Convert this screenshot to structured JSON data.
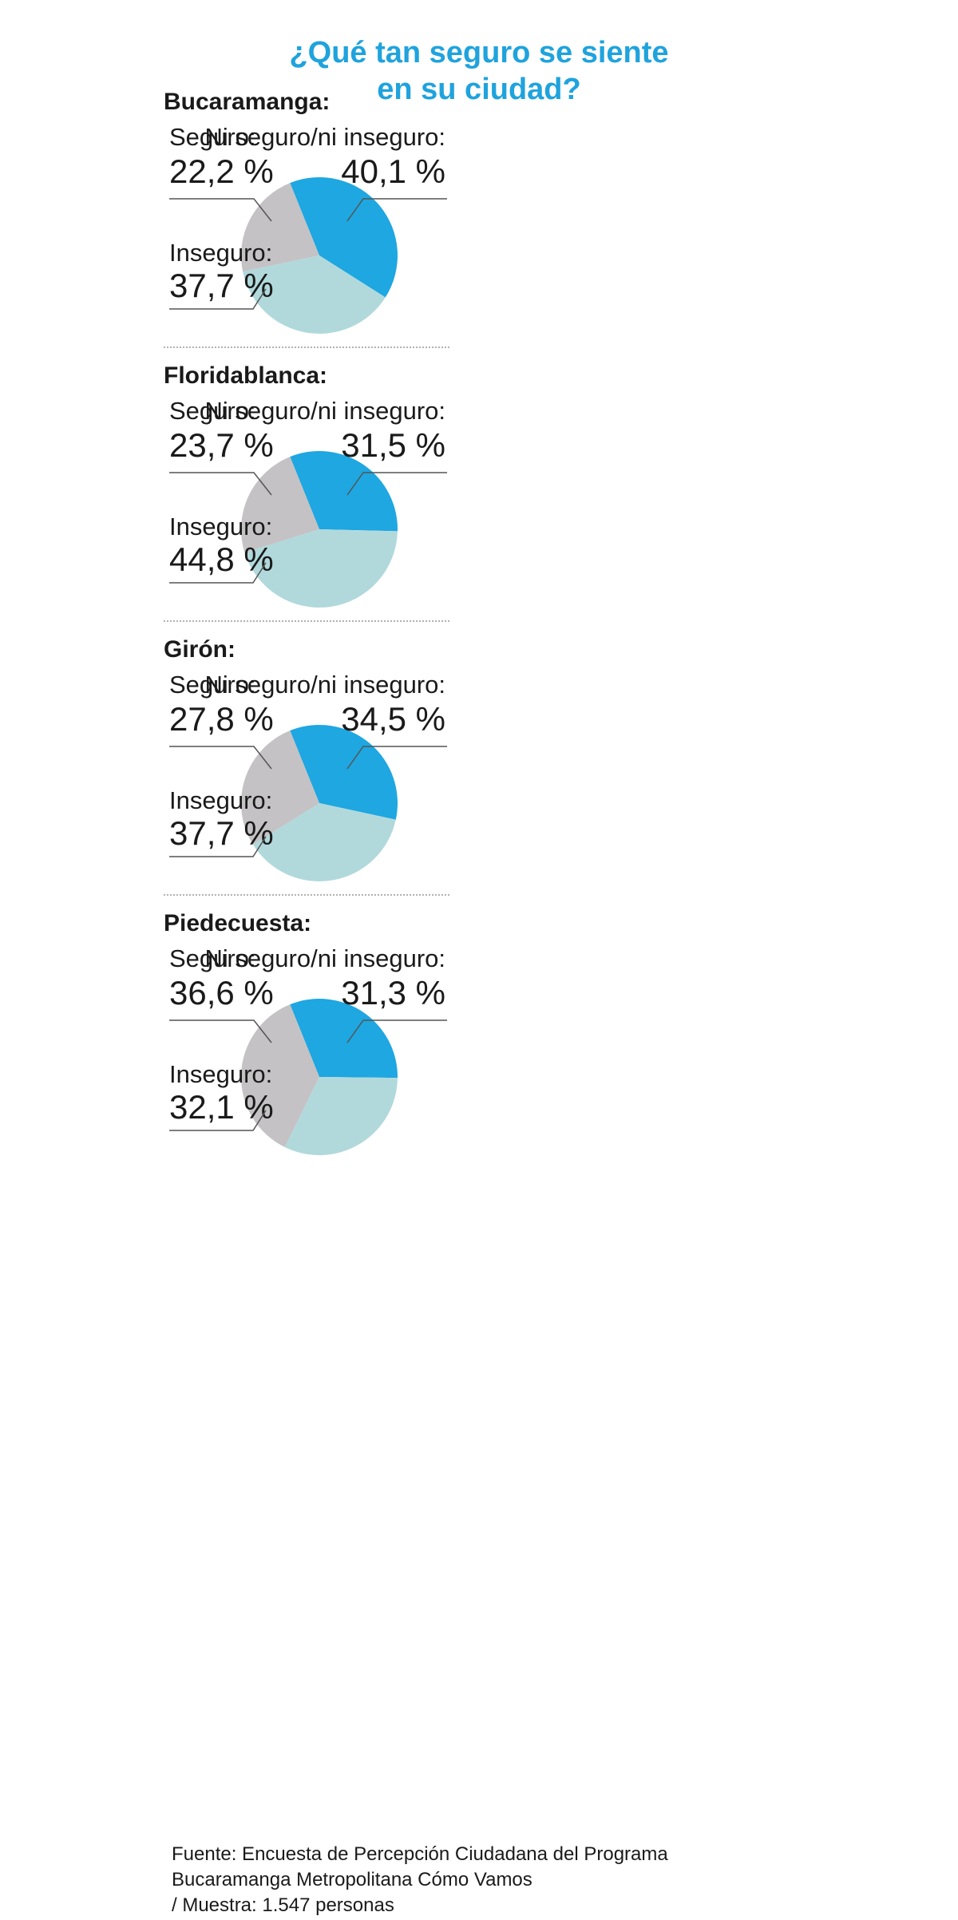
{
  "title": [
    "¿Qué tan seguro se siente",
    "en su ciudad?"
  ],
  "labels": {
    "seguro": "Seguro:",
    "ni": "Ni seguro/ni inseguro:",
    "inseguro": "Inseguro:"
  },
  "colors": {
    "title": "#1fa3dd",
    "ni": "#1ea7e1",
    "inseguro": "#b1d9dc",
    "seguro": "#c4c2c4"
  },
  "chart_data": [
    {
      "type": "pie",
      "title": "Bucaramanga:",
      "categories": [
        "Ni seguro/ni inseguro",
        "Inseguro",
        "Seguro"
      ],
      "values": [
        40.1,
        37.7,
        22.2
      ],
      "value_labels": [
        "40,1 %",
        "37,7 %",
        "22,2 %"
      ]
    },
    {
      "type": "pie",
      "title": "Floridablanca:",
      "categories": [
        "Ni seguro/ni inseguro",
        "Inseguro",
        "Seguro"
      ],
      "values": [
        31.5,
        44.8,
        23.7
      ],
      "value_labels": [
        "31,5 %",
        "44,8 %",
        "23,7 %"
      ]
    },
    {
      "type": "pie",
      "title": "Girón:",
      "categories": [
        "Ni seguro/ni inseguro",
        "Inseguro",
        "Seguro"
      ],
      "values": [
        34.5,
        37.7,
        27.8
      ],
      "value_labels": [
        "34,5 %",
        "37,7 %",
        "27,8 %"
      ]
    },
    {
      "type": "pie",
      "title": "Piedecuesta:",
      "categories": [
        "Ni seguro/ni inseguro",
        "Inseguro",
        "Seguro"
      ],
      "values": [
        31.3,
        32.1,
        36.6
      ],
      "value_labels": [
        "31,3 %",
        "32,1 %",
        "36,6 %"
      ]
    }
  ],
  "source": [
    "Fuente: Encuesta de Percepción Ciudadana del Programa",
    "Bucaramanga Metropolitana Cómo Vamos",
    "/ Muestra: 1.547 personas"
  ]
}
